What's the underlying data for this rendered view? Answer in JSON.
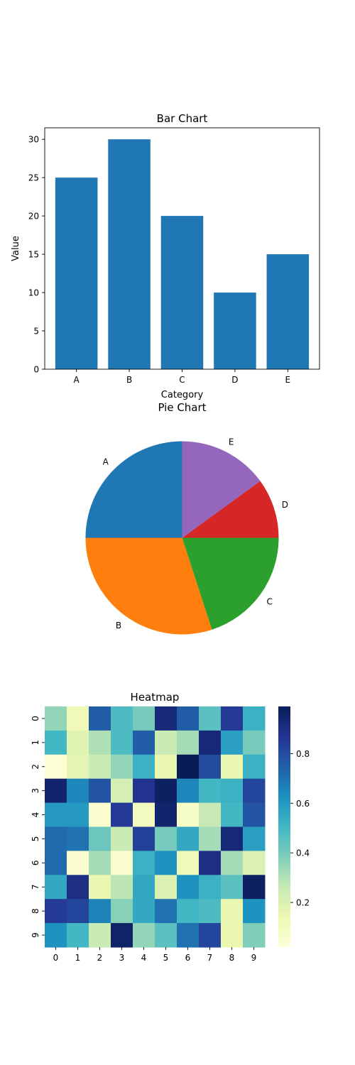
{
  "chart_data": [
    {
      "type": "bar",
      "title": "Bar Chart",
      "xlabel": "Category",
      "ylabel": "Value",
      "categories": [
        "A",
        "B",
        "C",
        "D",
        "E"
      ],
      "values": [
        25,
        30,
        20,
        10,
        15
      ],
      "ylim": [
        0,
        31.5
      ],
      "yticks": [
        0,
        5,
        10,
        15,
        20,
        25,
        30
      ],
      "color": "#1f77b4",
      "grid": false
    },
    {
      "type": "pie",
      "title": "Pie Chart",
      "labels": [
        "A",
        "B",
        "C",
        "D",
        "E"
      ],
      "values": [
        25,
        30,
        20,
        10,
        15
      ],
      "colors": [
        "#1f77b4",
        "#ff7f0e",
        "#2ca02c",
        "#d62728",
        "#9467bd"
      ],
      "startangle": 90
    },
    {
      "type": "heatmap",
      "title": "Heatmap",
      "x_labels": [
        "0",
        "1",
        "2",
        "3",
        "4",
        "5",
        "6",
        "7",
        "8",
        "9"
      ],
      "y_labels": [
        "0",
        "1",
        "2",
        "3",
        "4",
        "5",
        "6",
        "7",
        "8",
        "9"
      ],
      "colormap": "YlGnBu",
      "colorbar_ticks": [
        0.2,
        0.4,
        0.6,
        0.8
      ],
      "vmin": 0.02,
      "vmax": 0.99,
      "values": [
        [
          0.35,
          0.12,
          0.75,
          0.48,
          0.4,
          0.92,
          0.75,
          0.45,
          0.85,
          0.52
        ],
        [
          0.5,
          0.18,
          0.3,
          0.48,
          0.75,
          0.25,
          0.32,
          0.93,
          0.58,
          0.4
        ],
        [
          0.03,
          0.17,
          0.25,
          0.35,
          0.52,
          0.15,
          0.99,
          0.8,
          0.15,
          0.52
        ],
        [
          0.95,
          0.65,
          0.78,
          0.22,
          0.88,
          0.97,
          0.65,
          0.5,
          0.52,
          0.82
        ],
        [
          0.6,
          0.6,
          0.05,
          0.85,
          0.1,
          0.95,
          0.08,
          0.26,
          0.5,
          0.78
        ],
        [
          0.72,
          0.7,
          0.42,
          0.25,
          0.83,
          0.4,
          0.55,
          0.32,
          0.93,
          0.58
        ],
        [
          0.72,
          0.05,
          0.32,
          0.05,
          0.52,
          0.62,
          0.12,
          0.9,
          0.32,
          0.2
        ],
        [
          0.55,
          0.9,
          0.15,
          0.28,
          0.55,
          0.2,
          0.62,
          0.52,
          0.45,
          0.97
        ],
        [
          0.85,
          0.82,
          0.66,
          0.37,
          0.55,
          0.7,
          0.5,
          0.48,
          0.15,
          0.62
        ],
        [
          0.62,
          0.5,
          0.25,
          0.96,
          0.35,
          0.45,
          0.7,
          0.82,
          0.15,
          0.38
        ]
      ]
    }
  ]
}
